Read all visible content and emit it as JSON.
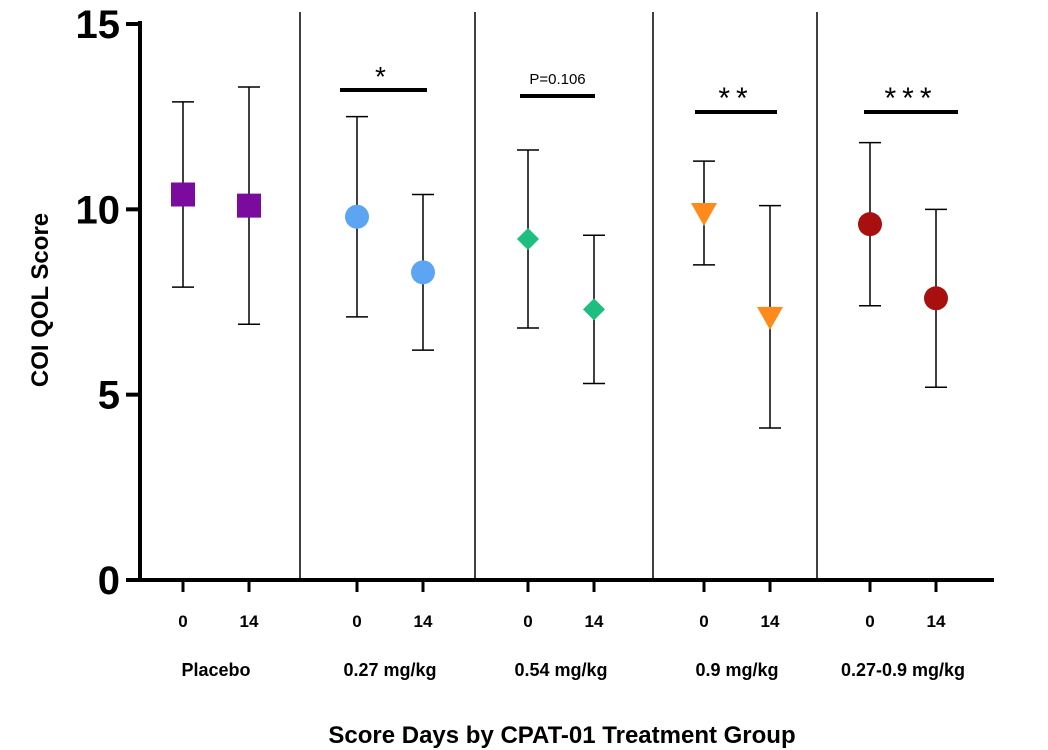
{
  "chart_data": {
    "type": "scatter",
    "title": "",
    "xlabel": "Score Days by CPAT-01 Treatment Group",
    "ylabel": "COI QOL  Score",
    "ylim": [
      0,
      15
    ],
    "yticks": [
      0,
      5,
      10,
      15
    ],
    "grid": false,
    "groups": [
      {
        "name": "Placebo",
        "color": "#7B0A9E",
        "marker": "square",
        "points": [
          {
            "day": "0",
            "mean": 10.4,
            "low": 7.9,
            "high": 12.9
          },
          {
            "day": "14",
            "mean": 10.1,
            "low": 6.9,
            "high": 13.3
          }
        ],
        "significance": ""
      },
      {
        "name": "0.27 mg/kg",
        "color": "#5BA5F2",
        "marker": "circle",
        "points": [
          {
            "day": "0",
            "mean": 9.8,
            "low": 7.1,
            "high": 12.5
          },
          {
            "day": "14",
            "mean": 8.3,
            "low": 6.2,
            "high": 10.4
          }
        ],
        "significance": "*"
      },
      {
        "name": "0.54 mg/kg",
        "color": "#1DBE7E",
        "marker": "diamond",
        "points": [
          {
            "day": "0",
            "mean": 9.2,
            "low": 6.8,
            "high": 11.6
          },
          {
            "day": "14",
            "mean": 7.3,
            "low": 5.3,
            "high": 9.3
          }
        ],
        "significance": "P=0.106"
      },
      {
        "name": "0.9 mg/kg",
        "color": "#FF8A1C",
        "marker": "triangle-down",
        "points": [
          {
            "day": "0",
            "mean": 9.9,
            "low": 8.5,
            "high": 11.3
          },
          {
            "day": "14",
            "mean": 7.1,
            "low": 4.1,
            "high": 10.1
          }
        ],
        "significance": "**"
      },
      {
        "name": "0.27-0.9 mg/kg",
        "color": "#A80F0F",
        "marker": "circle",
        "points": [
          {
            "day": "0",
            "mean": 9.6,
            "low": 7.4,
            "high": 11.8
          },
          {
            "day": "14",
            "mean": 7.6,
            "low": 5.2,
            "high": 10.0
          }
        ],
        "significance": "***"
      }
    ]
  }
}
